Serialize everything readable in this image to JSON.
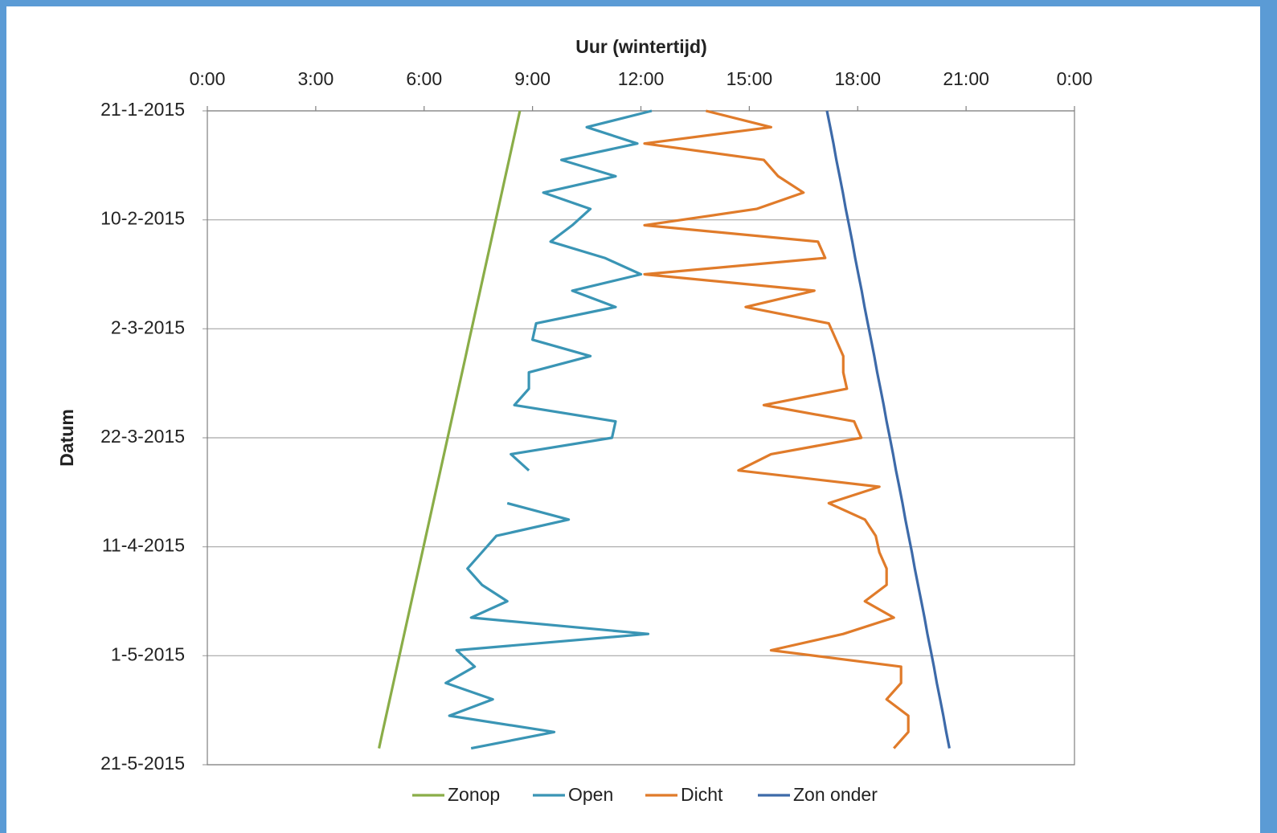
{
  "chart_data": {
    "type": "line",
    "xlabel": "Uur (wintertijd)",
    "ylabel": "Datum",
    "xlim": [
      0,
      24
    ],
    "xticks": [
      {
        "value": 0,
        "label": "0:00"
      },
      {
        "value": 3,
        "label": "3:00"
      },
      {
        "value": 6,
        "label": "6:00"
      },
      {
        "value": 9,
        "label": "9:00"
      },
      {
        "value": 12,
        "label": "12:00"
      },
      {
        "value": 15,
        "label": "15:00"
      },
      {
        "value": 18,
        "label": "18:00"
      },
      {
        "value": 21,
        "label": "21:00"
      },
      {
        "value": 24,
        "label": "0:00"
      }
    ],
    "ylim": [
      "21-1-2015",
      "21-5-2015"
    ],
    "yticks": [
      "21-1-2015",
      "10-2-2015",
      "2-3-2015",
      "22-3-2015",
      "11-4-2015",
      "1-5-2015",
      "21-5-2015"
    ],
    "grid": true,
    "legend": "bottom",
    "y": [
      "21-1-2015",
      "24-1-2015",
      "27-1-2015",
      "30-1-2015",
      "2-2-2015",
      "5-2-2015",
      "8-2-2015",
      "11-2-2015",
      "14-2-2015",
      "17-2-2015",
      "20-2-2015",
      "23-2-2015",
      "26-2-2015",
      "1-3-2015",
      "4-3-2015",
      "7-3-2015",
      "10-3-2015",
      "13-3-2015",
      "16-3-2015",
      "19-3-2015",
      "22-3-2015",
      "25-3-2015",
      "28-3-2015",
      "31-3-2015",
      "3-4-2015",
      "6-4-2015",
      "9-4-2015",
      "12-4-2015",
      "15-4-2015",
      "18-4-2015",
      "21-4-2015",
      "24-4-2015",
      "27-4-2015",
      "30-4-2015",
      "3-5-2015",
      "6-5-2015",
      "9-5-2015",
      "12-5-2015",
      "15-5-2015",
      "18-5-2015"
    ],
    "series": [
      {
        "name": "Zonop",
        "color": "#8aad48",
        "values": [
          8.65,
          8.55,
          8.45,
          8.35,
          8.25,
          8.15,
          8.05,
          7.95,
          7.85,
          7.75,
          7.65,
          7.55,
          7.45,
          7.35,
          7.25,
          7.15,
          7.05,
          6.95,
          6.85,
          6.75,
          6.65,
          6.55,
          6.45,
          6.35,
          6.25,
          6.15,
          6.05,
          5.95,
          5.85,
          5.75,
          5.65,
          5.55,
          5.45,
          5.35,
          5.25,
          5.15,
          5.05,
          4.95,
          4.85,
          4.75
        ]
      },
      {
        "name": "Open",
        "color": "#3a95b5",
        "values": [
          12.3,
          10.5,
          11.9,
          9.8,
          11.3,
          9.3,
          10.6,
          10.1,
          9.5,
          11.0,
          12.0,
          10.1,
          11.3,
          9.1,
          9.0,
          10.6,
          8.9,
          8.9,
          8.5,
          11.3,
          11.2,
          8.4,
          8.9,
          null,
          8.3,
          10.0,
          8.0,
          7.6,
          7.2,
          7.6,
          8.3,
          7.3,
          12.2,
          6.9,
          7.4,
          6.6,
          7.9,
          6.7,
          9.6,
          7.3
        ]
      },
      {
        "name": "Dicht",
        "color": "#e07b2a",
        "values": [
          13.8,
          15.6,
          12.1,
          15.4,
          15.8,
          16.5,
          15.2,
          12.1,
          16.9,
          17.1,
          12.1,
          16.8,
          14.9,
          17.2,
          17.4,
          17.6,
          17.6,
          17.7,
          15.4,
          17.9,
          18.1,
          15.6,
          14.7,
          18.6,
          17.2,
          18.2,
          18.5,
          18.6,
          18.8,
          18.8,
          18.2,
          19.0,
          17.6,
          15.6,
          19.2,
          19.2,
          18.8,
          19.4,
          19.4,
          19.0
        ]
      },
      {
        "name": "Zon onder",
        "color": "#3d6aa9",
        "values": [
          17.15,
          17.24,
          17.33,
          17.41,
          17.5,
          17.59,
          17.67,
          17.76,
          17.85,
          17.93,
          18.02,
          18.11,
          18.19,
          18.28,
          18.37,
          18.46,
          18.54,
          18.63,
          18.72,
          18.8,
          18.89,
          18.98,
          19.06,
          19.15,
          19.24,
          19.32,
          19.41,
          19.5,
          19.58,
          19.67,
          19.76,
          19.85,
          19.93,
          20.02,
          20.11,
          20.19,
          20.28,
          20.37,
          20.45,
          20.54
        ]
      }
    ]
  }
}
